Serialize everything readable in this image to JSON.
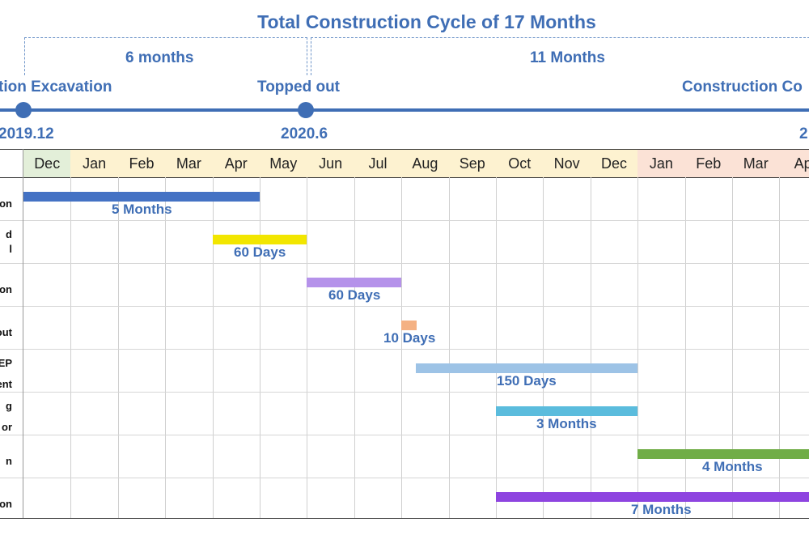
{
  "chart_data": {
    "type": "gantt",
    "title": "Total Construction Cycle of 17 Months",
    "segments": [
      {
        "label": "6 months"
      },
      {
        "label": "11 Months"
      }
    ],
    "milestones": [
      {
        "label": "tion Excavation",
        "date": "2019.12"
      },
      {
        "label": "Topped out",
        "date": "2020.6"
      },
      {
        "label": "Construction Co",
        "date": "2"
      }
    ],
    "months": [
      "Dec",
      "Jan",
      "Feb",
      "Mar",
      "Apr",
      "May",
      "Jun",
      "Jul",
      "Aug",
      "Sep",
      "Oct",
      "Nov",
      "Dec",
      "Jan",
      "Feb",
      "Mar",
      "Ap"
    ],
    "month_colors": [
      "#e3efd9",
      "#fdf2d0",
      "#fdf2d0",
      "#fdf2d0",
      "#fdf2d0",
      "#fdf2d0",
      "#fdf2d0",
      "#fdf2d0",
      "#fdf2d0",
      "#fdf2d0",
      "#fdf2d0",
      "#fdf2d0",
      "#fdf2d0",
      "#fbe2d6",
      "#fbe2d6",
      "#fbe2d6",
      "#fbe2d6"
    ],
    "tasks": [
      {
        "label_lines": [
          "on"
        ],
        "start": 0,
        "end": 5,
        "duration": "5  Months",
        "color": "#4472c4"
      },
      {
        "label_lines": [
          "d",
          "l"
        ],
        "start": 4,
        "end": 6,
        "duration": "60 Days",
        "color": "#f2e600"
      },
      {
        "label_lines": [
          "ction"
        ],
        "start": 6,
        "end": 8,
        "duration": "60 Days",
        "color": "#b592ea"
      },
      {
        "label_lines": [
          "-out"
        ],
        "start": 8,
        "end": 8.33,
        "duration": "10 Days",
        "color": "#f4b183"
      },
      {
        "label_lines": [
          "IEP",
          "ent"
        ],
        "start": 8.3,
        "end": 13,
        "duration": "150 Days",
        "color": "#9dc3e6"
      },
      {
        "label_lines": [
          "g",
          "or"
        ],
        "start": 10,
        "end": 13,
        "duration": "3 Months",
        "color": "#5bbcdd"
      },
      {
        "label_lines": [
          "n"
        ],
        "start": 13,
        "end": 17,
        "duration": "4 Months",
        "color": "#70ad47"
      },
      {
        "label_lines": [
          "on"
        ],
        "start": 10,
        "end": 17,
        "duration": "7 Months",
        "color": "#8e44e0"
      }
    ]
  }
}
